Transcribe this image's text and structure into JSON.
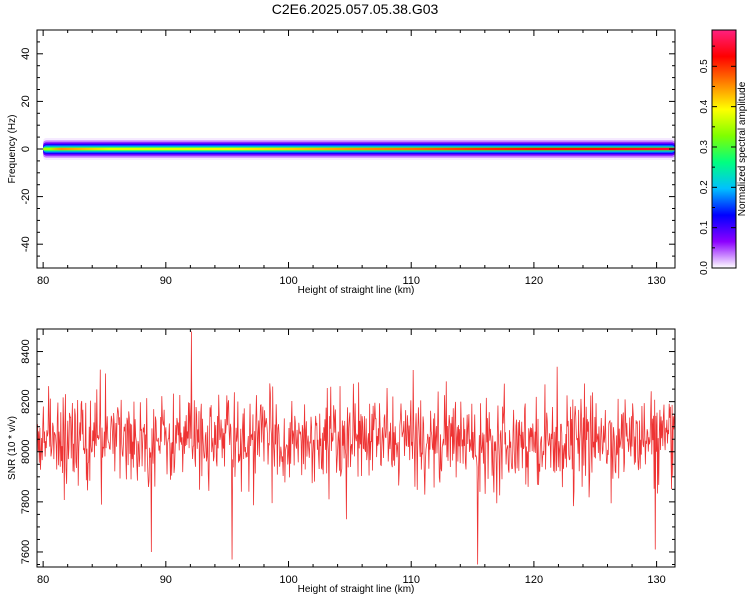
{
  "title": "C2E6.2025.057.05.38.G03",
  "chart_data": [
    {
      "type": "heatmap",
      "xlabel": "Height of straight line (km)",
      "ylabel": "Frequency (Hz)",
      "xlim": [
        79.5,
        131.5
      ],
      "ylim": [
        -50,
        50
      ],
      "x_ticks": [
        80,
        90,
        100,
        110,
        120,
        130
      ],
      "y_ticks": [
        40,
        20,
        0,
        -20,
        -40
      ],
      "y_tick_labels": [
        "40",
        "20",
        "0",
        "-20",
        "-40"
      ],
      "band_center_hz": 0,
      "band": {
        "x": [
          80,
          81,
          85,
          90,
          95,
          100,
          105,
          110,
          115,
          120,
          125,
          131.5
        ],
        "peak_amplitude": [
          0.35,
          0.45,
          0.38,
          0.38,
          0.4,
          0.42,
          0.45,
          0.47,
          0.5,
          0.52,
          0.52,
          0.55
        ]
      },
      "colorbar": {
        "label": "Normalized spectral amplitude",
        "range": [
          0,
          0.59
        ],
        "ticks": [
          0.0,
          0.1,
          0.2,
          0.3,
          0.4,
          0.5
        ],
        "tick_labels": [
          "0.0",
          "0.1",
          "0.2",
          "0.3",
          "0.4",
          "0.5"
        ],
        "colors": [
          "#ffffff",
          "#8c00ff",
          "#0000ff",
          "#00c0ff",
          "#00ff80",
          "#80ff00",
          "#ffff00",
          "#ff8000",
          "#ff0000",
          "#ff2080"
        ]
      },
      "grid": false
    },
    {
      "type": "line",
      "xlabel": "Height of straight line (km)",
      "ylabel": "SNR (10 * v/v)",
      "xlim": [
        79.5,
        131.5
      ],
      "ylim": [
        7540,
        8490
      ],
      "x_ticks": [
        80,
        90,
        100,
        110,
        120,
        130
      ],
      "y_ticks": [
        7600,
        7800,
        8000,
        8200,
        8400
      ],
      "series": [
        {
          "color": "#ee3333",
          "mean": 8050,
          "noise_sd": 85,
          "x_start": 79.5,
          "x_end": 131.5,
          "n_points": 1100,
          "extremes": [
            {
              "x": 92.1,
              "y": 8480
            },
            {
              "x": 95.4,
              "y": 7570
            },
            {
              "x": 88.8,
              "y": 7600
            },
            {
              "x": 115.4,
              "y": 7550
            },
            {
              "x": 129.9,
              "y": 7610
            }
          ]
        }
      ],
      "grid": false
    }
  ]
}
